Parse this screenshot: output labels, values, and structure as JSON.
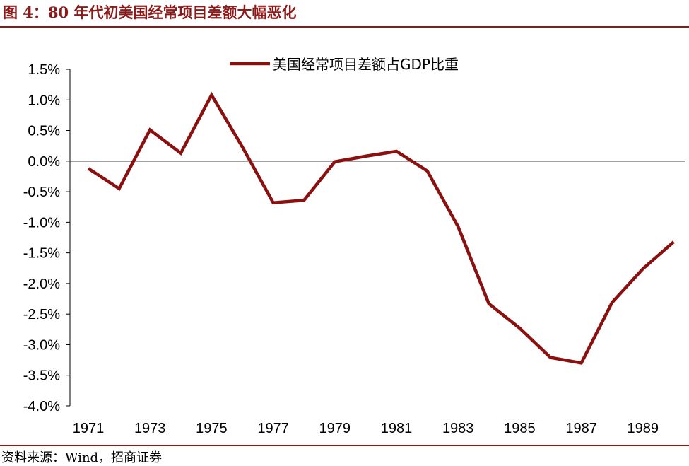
{
  "figure": {
    "title": "图 4：80 年代初美国经常项目差额大幅恶化",
    "source": "资料来源：Wind，招商证券"
  },
  "colors": {
    "accent": "#8B1A1A",
    "line": "#8B1010",
    "axis": "#000000"
  },
  "chart_data": {
    "type": "line",
    "title": "",
    "xlabel": "",
    "ylabel": "",
    "x": [
      1971,
      1972,
      1973,
      1974,
      1975,
      1976,
      1977,
      1978,
      1979,
      1980,
      1981,
      1982,
      1983,
      1984,
      1985,
      1986,
      1987,
      1988,
      1989,
      1990
    ],
    "x_tick_labels": [
      "1971",
      "1973",
      "1975",
      "1977",
      "1979",
      "1981",
      "1983",
      "1985",
      "1987",
      "1989"
    ],
    "y_tick_labels": [
      "1.5%",
      "1.0%",
      "0.5%",
      "0.0%",
      "-0.5%",
      "-1.0%",
      "-1.5%",
      "-2.0%",
      "-2.5%",
      "-3.0%",
      "-3.5%",
      "-4.0%"
    ],
    "y_ticks": [
      1.5,
      1.0,
      0.5,
      0.0,
      -0.5,
      -1.0,
      -1.5,
      -2.0,
      -2.5,
      -3.0,
      -3.5,
      -4.0
    ],
    "ylim": [
      -4.0,
      1.5
    ],
    "legend_position": "top-center",
    "grid": false,
    "series": [
      {
        "name": "美国经常项目差额占GDP比重",
        "values": [
          -0.12,
          -0.45,
          0.51,
          0.13,
          1.08,
          0.23,
          -0.68,
          -0.64,
          -0.01,
          0.08,
          0.16,
          -0.16,
          -1.07,
          -2.33,
          -2.73,
          -3.21,
          -3.3,
          -2.31,
          -1.76,
          -1.32
        ]
      }
    ]
  }
}
